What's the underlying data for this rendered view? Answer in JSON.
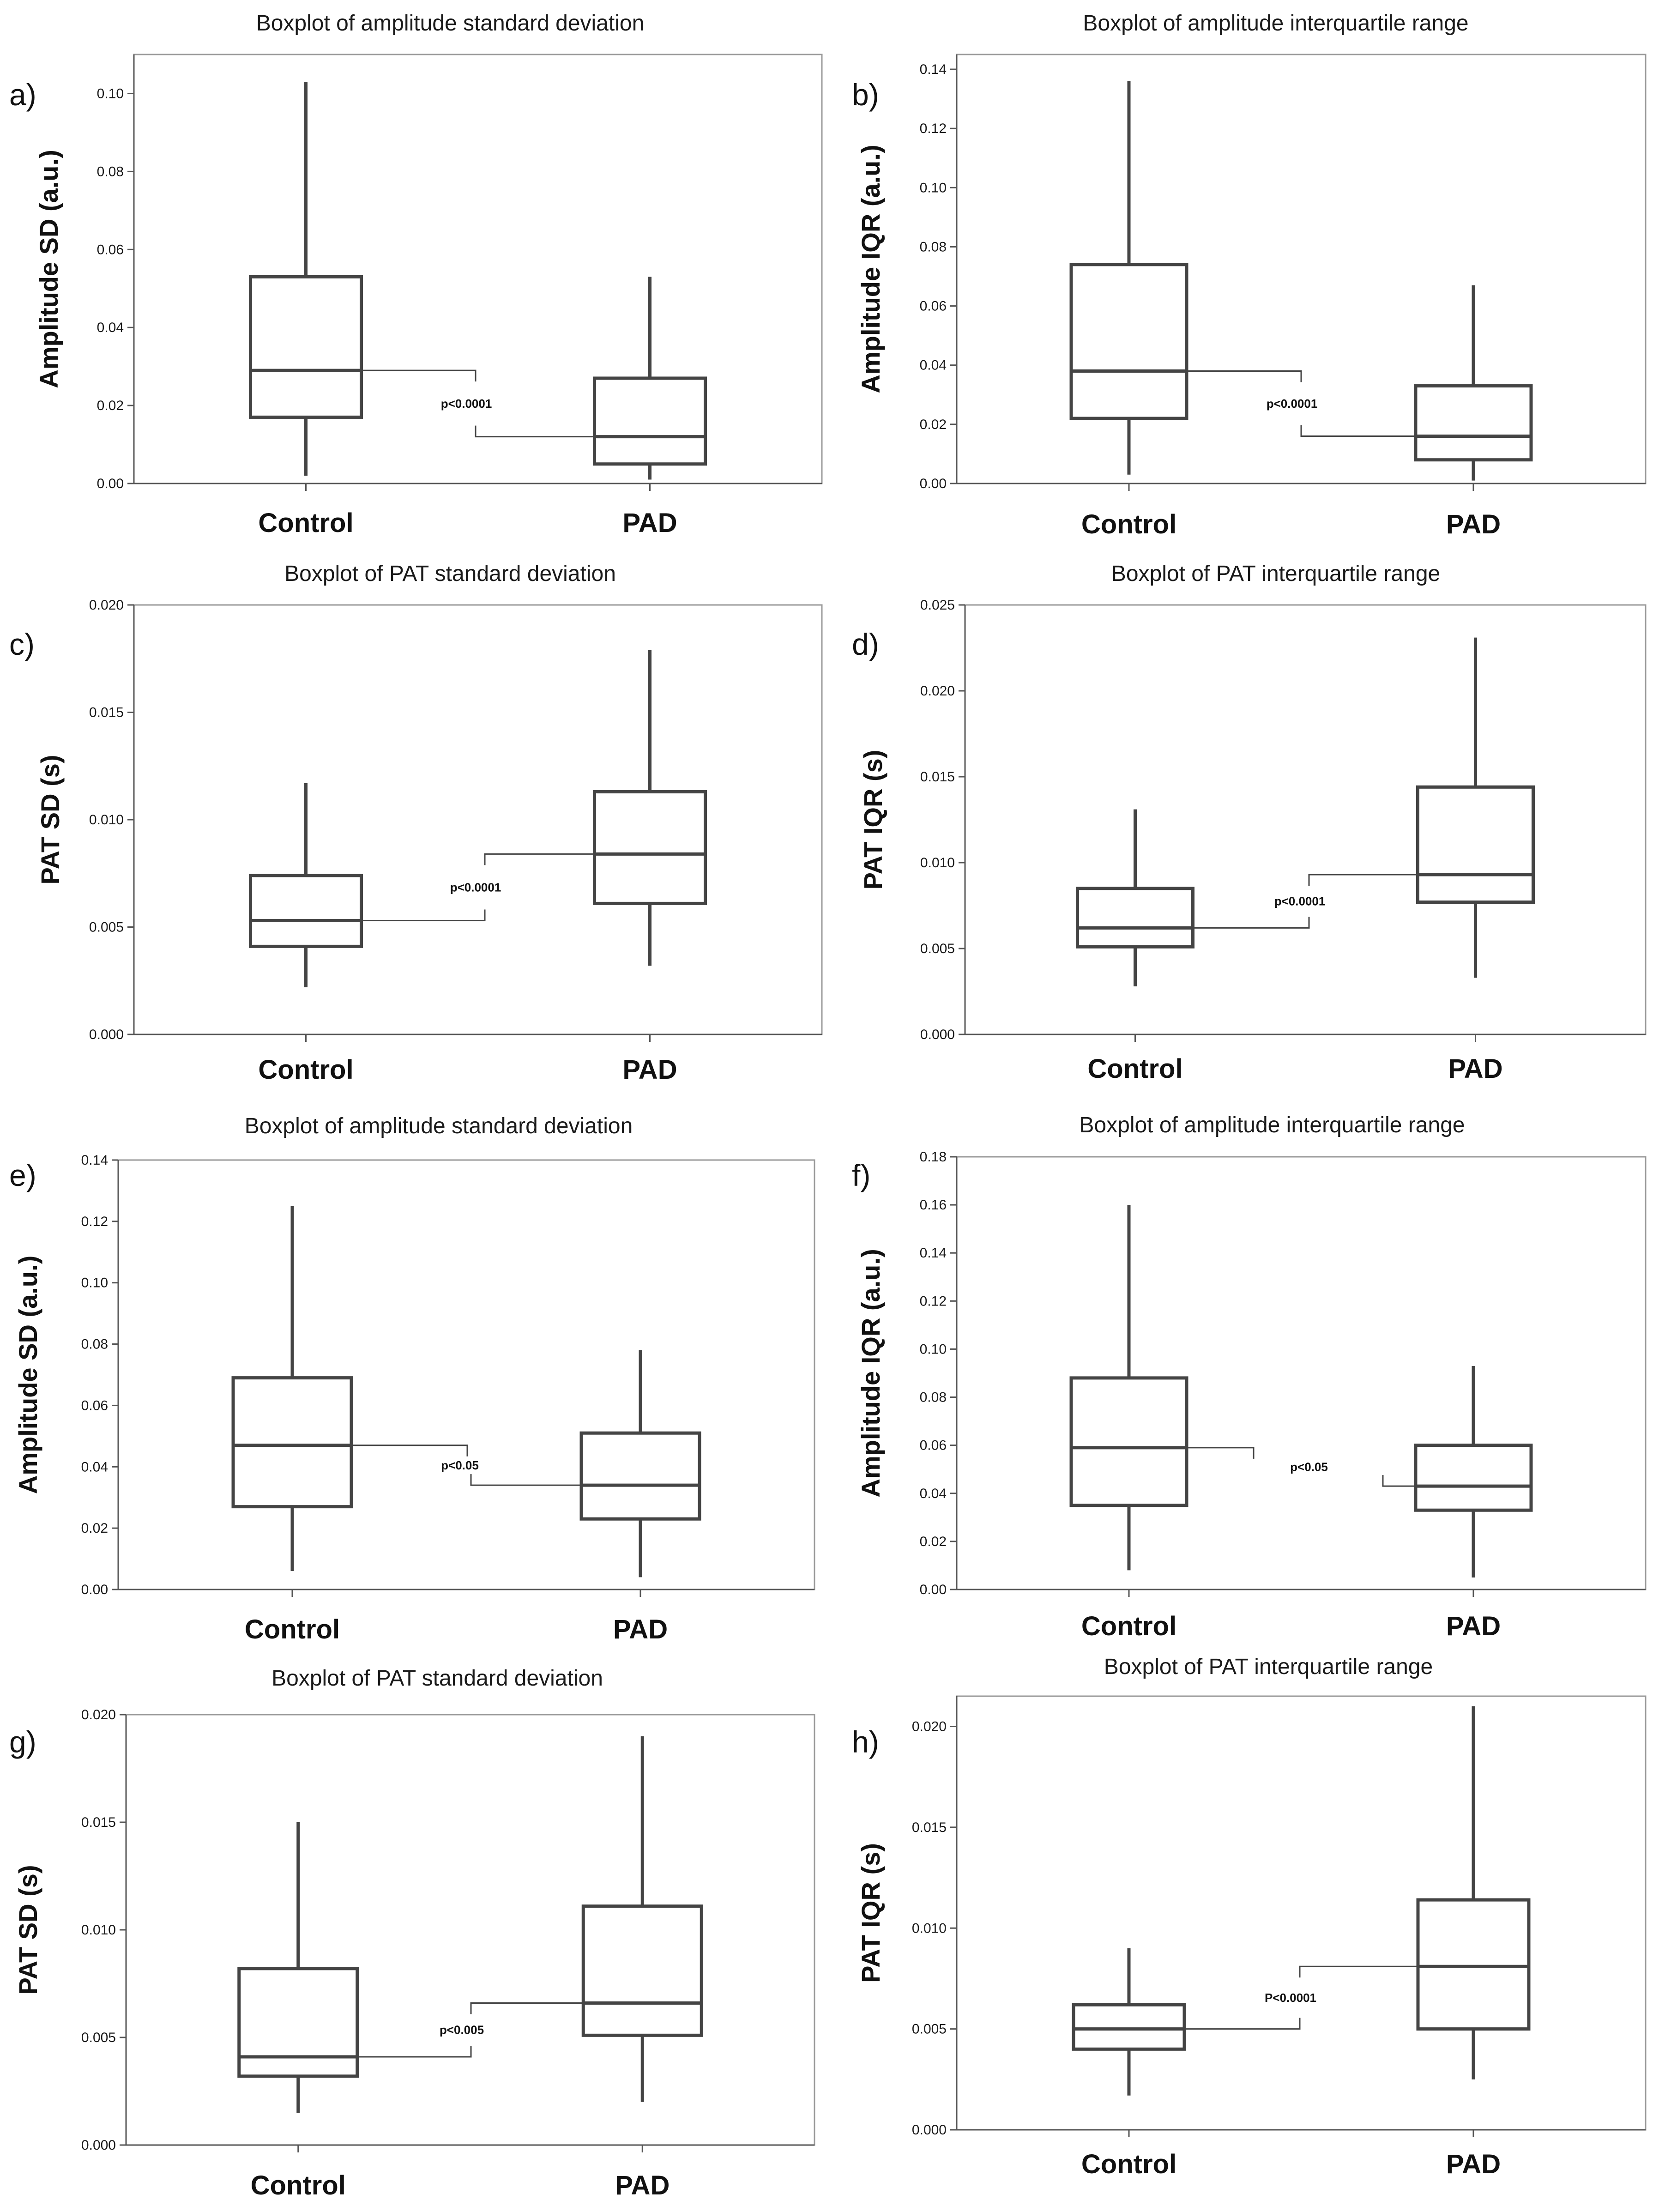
{
  "chart_data": [
    {
      "type": "boxplot",
      "panel_label": "a)",
      "title": "Boxplot of amplitude standard deviation",
      "ylabel": "Amplitude SD (a.u.)",
      "categories": [
        "Control",
        "PAD"
      ],
      "ylim": [
        0,
        0.11
      ],
      "yticks": [
        "0.00",
        "0.02",
        "0.04",
        "0.06",
        "0.08",
        "0.10"
      ],
      "boxes": [
        {
          "name": "Control",
          "whisker_low": 0.002,
          "q1": 0.017,
          "median": 0.029,
          "q3": 0.053,
          "whisker_high": 0.103
        },
        {
          "name": "PAD",
          "whisker_low": 0.001,
          "q1": 0.005,
          "median": 0.012,
          "q3": 0.027,
          "whisker_high": 0.053
        }
      ],
      "pvalue": "p<0.0001"
    },
    {
      "type": "boxplot",
      "panel_label": "b)",
      "title": "Boxplot of amplitude interquartile range",
      "ylabel": "Amplitude IQR (a.u.)",
      "categories": [
        "Control",
        "PAD"
      ],
      "ylim": [
        0,
        0.145
      ],
      "yticks": [
        "0.00",
        "0.02",
        "0.04",
        "0.06",
        "0.08",
        "0.10",
        "0.12",
        "0.14"
      ],
      "boxes": [
        {
          "name": "Control",
          "whisker_low": 0.003,
          "q1": 0.022,
          "median": 0.038,
          "q3": 0.074,
          "whisker_high": 0.136
        },
        {
          "name": "PAD",
          "whisker_low": 0.001,
          "q1": 0.008,
          "median": 0.016,
          "q3": 0.033,
          "whisker_high": 0.067
        }
      ],
      "pvalue": "p<0.0001"
    },
    {
      "type": "boxplot",
      "panel_label": "c)",
      "title": "Boxplot of PAT standard deviation",
      "ylabel": "PAT SD (s)",
      "categories": [
        "Control",
        "PAD"
      ],
      "ylim": [
        0,
        0.02
      ],
      "yticks": [
        "0.000",
        "0.005",
        "0.010",
        "0.015",
        "0.020"
      ],
      "boxes": [
        {
          "name": "Control",
          "whisker_low": 0.0022,
          "q1": 0.0041,
          "median": 0.0053,
          "q3": 0.0074,
          "whisker_high": 0.0117
        },
        {
          "name": "PAD",
          "whisker_low": 0.0032,
          "q1": 0.0061,
          "median": 0.0084,
          "q3": 0.0113,
          "whisker_high": 0.0179
        }
      ],
      "pvalue": "p<0.0001"
    },
    {
      "type": "boxplot",
      "panel_label": "d)",
      "title": "Boxplot of PAT interquartile range",
      "ylabel": "PAT IQR (s)",
      "categories": [
        "Control",
        "PAD"
      ],
      "ylim": [
        0,
        0.025
      ],
      "yticks": [
        "0.000",
        "0.005",
        "0.010",
        "0.015",
        "0.020",
        "0.025"
      ],
      "boxes": [
        {
          "name": "Control",
          "whisker_low": 0.0028,
          "q1": 0.0051,
          "median": 0.0062,
          "q3": 0.0085,
          "whisker_high": 0.0131
        },
        {
          "name": "PAD",
          "whisker_low": 0.0033,
          "q1": 0.0077,
          "median": 0.0093,
          "q3": 0.0144,
          "whisker_high": 0.0231
        }
      ],
      "pvalue": "p<0.0001"
    },
    {
      "type": "boxplot",
      "panel_label": "e)",
      "title": "Boxplot of amplitude standard deviation",
      "ylabel": "Amplitude SD (a.u.)",
      "categories": [
        "Control",
        "PAD"
      ],
      "ylim": [
        0,
        0.14
      ],
      "yticks": [
        "0.00",
        "0.02",
        "0.04",
        "0.06",
        "0.08",
        "0.10",
        "0.12",
        "0.14"
      ],
      "boxes": [
        {
          "name": "Control",
          "whisker_low": 0.006,
          "q1": 0.027,
          "median": 0.047,
          "q3": 0.069,
          "whisker_high": 0.125
        },
        {
          "name": "PAD",
          "whisker_low": 0.004,
          "q1": 0.023,
          "median": 0.034,
          "q3": 0.051,
          "whisker_high": 0.078
        }
      ],
      "pvalue": "p<0.05"
    },
    {
      "type": "boxplot",
      "panel_label": "f)",
      "title": "Boxplot of amplitude interquartile range",
      "ylabel": "Amplitude IQR (a.u.)",
      "categories": [
        "Control",
        "PAD"
      ],
      "ylim": [
        0,
        0.18
      ],
      "yticks": [
        "0.00",
        "0.02",
        "0.04",
        "0.06",
        "0.08",
        "0.10",
        "0.12",
        "0.14",
        "0.16",
        "0.18"
      ],
      "boxes": [
        {
          "name": "Control",
          "whisker_low": 0.008,
          "q1": 0.035,
          "median": 0.059,
          "q3": 0.088,
          "whisker_high": 0.16
        },
        {
          "name": "PAD",
          "whisker_low": 0.005,
          "q1": 0.033,
          "median": 0.043,
          "q3": 0.06,
          "whisker_high": 0.093
        }
      ],
      "pvalue": "p<0.05"
    },
    {
      "type": "boxplot",
      "panel_label": "g)",
      "title": "Boxplot of PAT standard deviation",
      "ylabel": "PAT SD (s)",
      "categories": [
        "Control",
        "PAD"
      ],
      "ylim": [
        0,
        0.02
      ],
      "yticks": [
        "0.000",
        "0.005",
        "0.010",
        "0.015",
        "0.020"
      ],
      "boxes": [
        {
          "name": "Control",
          "whisker_low": 0.0015,
          "q1": 0.0032,
          "median": 0.0041,
          "q3": 0.0082,
          "whisker_high": 0.015
        },
        {
          "name": "PAD",
          "whisker_low": 0.002,
          "q1": 0.0051,
          "median": 0.0066,
          "q3": 0.0111,
          "whisker_high": 0.019
        }
      ],
      "pvalue": "p<0.005"
    },
    {
      "type": "boxplot",
      "panel_label": "h)",
      "title": "Boxplot of PAT interquartile range",
      "ylabel": "PAT IQR (s)",
      "categories": [
        "Control",
        "PAD"
      ],
      "ylim": [
        0,
        0.0215
      ],
      "yticks": [
        "0.000",
        "0.005",
        "0.010",
        "0.015",
        "0.020"
      ],
      "boxes": [
        {
          "name": "Control",
          "whisker_low": 0.0017,
          "q1": 0.004,
          "median": 0.005,
          "q3": 0.0062,
          "whisker_high": 0.009
        },
        {
          "name": "PAD",
          "whisker_low": 0.0025,
          "q1": 0.005,
          "median": 0.0081,
          "q3": 0.0114,
          "whisker_high": 0.021
        }
      ],
      "pvalue": "P<0.0001"
    }
  ]
}
